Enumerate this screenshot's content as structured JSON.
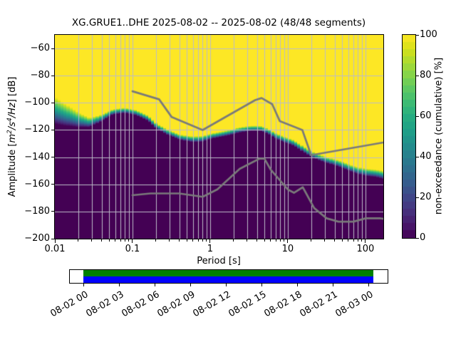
{
  "header": {
    "title": "XG.GRUE1..DHE   2025-08-02 -- 2025-08-02  (48/48 segments)",
    "station_id": "XG.GRUE1..DHE",
    "date_range": "2025-08-02 -- 2025-08-02",
    "segments": "48/48 segments"
  },
  "axes": {
    "xlabel": "Period [s]",
    "x_ticks": [
      "0.01",
      "0.1",
      "1",
      "10",
      "100"
    ],
    "ylabel_parts": {
      "pre": "Amplitude [",
      "m": "m",
      "e2": "2",
      "s": "/s",
      "e4": "4",
      "hz": "/Hz",
      "post": "] [dB]"
    },
    "y_ticks": [
      "−60",
      "−80",
      "−100",
      "−120",
      "−140",
      "−160",
      "−180",
      "−200"
    ]
  },
  "colorbar": {
    "label": "non-exceedance (cumulative) [%]",
    "ticks": [
      "0",
      "20",
      "40",
      "60",
      "80",
      "100"
    ]
  },
  "timeline": {
    "labels": [
      "08-02 00",
      "08-02 03",
      "08-02 06",
      "08-02 09",
      "08-02 12",
      "08-02 15",
      "08-02 18",
      "08-02 21",
      "08-03 00"
    ]
  },
  "colors": {
    "background": "#ffffff",
    "text": "#000000",
    "frame": "#000000",
    "grid": "#bcbcc8",
    "yellow_100pct": "#fde725",
    "purple_0pct": "#440154",
    "noise_model_line": "#7a7a7a",
    "coverage_green": "#008000",
    "coverage_blue": "#0000ff"
  },
  "chart_data": {
    "type": "heatmap",
    "title": "XG.GRUE1..DHE 2025-08-02 -- 2025-08-02 (48/48 segments)",
    "xlabel": "Period [s]",
    "x_scale": "log",
    "xlim": [
      0.01,
      170
    ],
    "ylabel": "Amplitude [m^2/s^4/Hz] [dB]",
    "ylim": [
      -200,
      -50
    ],
    "grid": true,
    "colorbar_label": "non-exceedance (cumulative) [%]",
    "colorbar_range": [
      0,
      100
    ],
    "colorbar_steps": 28,
    "colormap_viridis_stops": [
      "#440154",
      "#481b6d",
      "#46327e",
      "#3f4788",
      "#365c8d",
      "#2e6e8e",
      "#277f8e",
      "#21918c",
      "#1fa187",
      "#28ae80",
      "#3fbc73",
      "#5ec962",
      "#84d44b",
      "#addc30",
      "#d8e219",
      "#fde725"
    ],
    "period_bin_octave_fraction": 0.125,
    "psd_distribution": {
      "description": "Cumulative non-exceedance field: 100% (yellow) above the PSD distribution, 0% (dark purple) below; 50% boundary level and transition half-width in dB vs period.",
      "periods_s": [
        0.01,
        0.014,
        0.02,
        0.028,
        0.04,
        0.055,
        0.08,
        0.11,
        0.13,
        0.16,
        0.21,
        0.28,
        0.4,
        0.6,
        0.8,
        1.1,
        1.6,
        2.3,
        3.3,
        4.6,
        5.6,
        7.0,
        9.0,
        12.0,
        15.0,
        18.5,
        25.0,
        35.0,
        50.0,
        70.0,
        100.0,
        130.0,
        170.0
      ],
      "median_dB": [
        -105,
        -109,
        -113,
        -114.5,
        -110.5,
        -107,
        -106,
        -107,
        -108.5,
        -111,
        -118,
        -122,
        -124.8,
        -126.5,
        -126.8,
        -124.5,
        -122,
        -120,
        -119.3,
        -119,
        -120.5,
        -124,
        -127,
        -130,
        -133.5,
        -136.5,
        -139.5,
        -143,
        -146,
        -148.5,
        -150.8,
        -152,
        -153.5
      ],
      "halfwidth_dB": [
        10,
        8,
        5.5,
        3.5,
        2.5,
        2,
        2,
        2,
        2,
        2,
        2,
        2,
        2,
        2.2,
        2.2,
        2,
        2,
        2,
        2,
        2,
        2,
        2.2,
        2.2,
        2.2,
        2.2,
        2.2,
        2.3,
        2.3,
        2.5,
        2.5,
        2.8,
        2.8,
        3
      ]
    },
    "noise_models": {
      "description": "Peterson New High/Low Noise Models (acceleration PSD, dB), plotted for periods >= 0.1 s",
      "NHNM": {
        "periods_s": [
          0.1,
          0.22,
          0.32,
          0.8,
          3.8,
          4.6,
          6.3,
          7.9,
          15.4,
          20.0,
          354.8
        ],
        "dB": [
          -91.5,
          -97.4,
          -110.5,
          -120.0,
          -98.0,
          -96.5,
          -101.0,
          -113.5,
          -120.0,
          -138.5,
          -126.0
        ]
      },
      "NLNM": {
        "periods_s": [
          0.1,
          0.17,
          0.4,
          0.8,
          1.24,
          2.4,
          4.3,
          5.0,
          6.0,
          10.0,
          12.0,
          15.6,
          21.9,
          31.6,
          45.0,
          70.0,
          101.0,
          154.0,
          328.0
        ],
        "dB": [
          -168.0,
          -166.7,
          -166.7,
          -169.2,
          -163.7,
          -148.6,
          -141.1,
          -141.1,
          -149.0,
          -163.8,
          -166.2,
          -162.1,
          -177.5,
          -185.0,
          -187.5,
          -187.5,
          -185.0,
          -185.0,
          -187.5
        ]
      }
    },
    "coverage_timeline": {
      "start_label": "08-02 00",
      "end_label": "08-03 00",
      "step_hours": 3,
      "bar_start_frac": 0.0,
      "bar_end_frac": 1.0175,
      "bar_colors": [
        "#008000",
        "#0000ff"
      ]
    }
  }
}
